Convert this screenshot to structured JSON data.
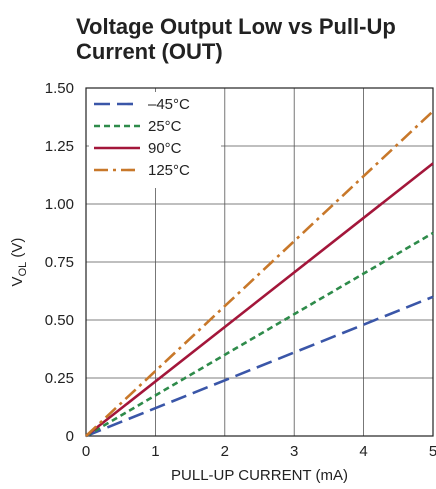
{
  "chart_data": {
    "type": "line",
    "title_lines": [
      "Voltage Output Low vs Pull-Up",
      "Current (OUT)"
    ],
    "xlabel": "PULL-UP CURRENT (mA)",
    "ylabel_main": "V",
    "ylabel_sub": "OL",
    "ylabel_unit": " (V)",
    "xlim": [
      0,
      5
    ],
    "ylim": [
      0,
      1.5
    ],
    "x_ticks": [
      0,
      1,
      2,
      3,
      4,
      5
    ],
    "x_tick_labels": [
      "0",
      "1",
      "2",
      "3",
      "4",
      "5"
    ],
    "y_ticks": [
      0,
      0.25,
      0.5,
      0.75,
      1.0,
      1.25,
      1.5
    ],
    "y_tick_labels": [
      "0",
      "0.25",
      "0.50",
      "0.75",
      "1.00",
      "1.25",
      "1.50"
    ],
    "grid": true,
    "legend_position": "top-left",
    "series": [
      {
        "name": "–45°C",
        "color": "#3a56a8",
        "dash": "dash",
        "x": [
          0,
          5
        ],
        "y": [
          0,
          0.6
        ]
      },
      {
        "name": "25°C",
        "color": "#2e8b4a",
        "dash": "dot",
        "x": [
          0,
          5
        ],
        "y": [
          0,
          0.875
        ]
      },
      {
        "name": "90°C",
        "color": "#a3163a",
        "dash": "solid",
        "x": [
          0,
          5
        ],
        "y": [
          0,
          1.175
        ]
      },
      {
        "name": "125°C",
        "color": "#c8782a",
        "dash": "dashdot",
        "x": [
          0,
          5
        ],
        "y": [
          0,
          1.4
        ]
      }
    ]
  }
}
